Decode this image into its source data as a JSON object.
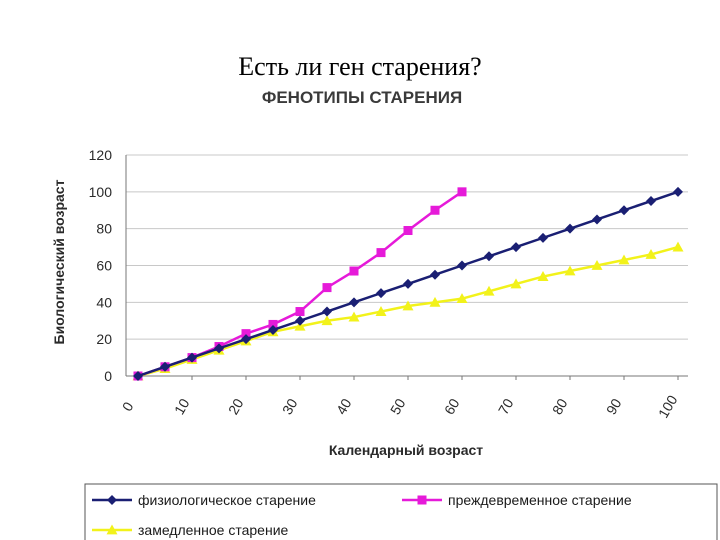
{
  "page_title": "Есть ли ген старения?",
  "colors": {
    "physio": "#1a1f73",
    "premature": "#e61ad9",
    "slow": "#f2f21a"
  },
  "chart_data": {
    "type": "line",
    "title": "ФЕНОТИПЫ СТАРЕНИЯ",
    "xlabel": "Календарный возраст",
    "ylabel": "Биологический возраст",
    "xlim": [
      0,
      100
    ],
    "ylim": [
      0,
      120
    ],
    "x_ticks": [
      "0",
      "10",
      "20",
      "30",
      "40",
      "50",
      "60",
      "70",
      "80",
      "90",
      "100"
    ],
    "y_ticks": [
      "0",
      "20",
      "40",
      "60",
      "80",
      "100",
      "120"
    ],
    "grid": true,
    "legend_position": "bottom",
    "series": [
      {
        "name": "физиологическое старение",
        "color": "#1a1f73",
        "marker": "diamond",
        "x": [
          0,
          5,
          10,
          15,
          20,
          25,
          30,
          35,
          40,
          45,
          50,
          55,
          60,
          65,
          70,
          75,
          80,
          85,
          90,
          95,
          100
        ],
        "y": [
          0,
          5,
          10,
          15,
          20,
          25,
          30,
          35,
          40,
          45,
          50,
          55,
          60,
          65,
          70,
          75,
          80,
          85,
          90,
          95,
          100
        ]
      },
      {
        "name": "преждевременное старение",
        "color": "#e61ad9",
        "marker": "square",
        "x": [
          0,
          5,
          10,
          15,
          20,
          25,
          30,
          35,
          40,
          45,
          50,
          55,
          60
        ],
        "y": [
          0,
          5,
          10,
          16,
          23,
          28,
          35,
          48,
          57,
          67,
          79,
          90,
          100
        ]
      },
      {
        "name": "замедленное старение",
        "color": "#f2f21a",
        "marker": "triangle",
        "x": [
          0,
          5,
          10,
          15,
          20,
          25,
          30,
          35,
          40,
          45,
          50,
          55,
          60,
          65,
          70,
          75,
          80,
          85,
          90,
          95,
          100
        ],
        "y": [
          0,
          4,
          9,
          14,
          19,
          24,
          27,
          30,
          32,
          35,
          38,
          40,
          42,
          46,
          50,
          54,
          57,
          60,
          63,
          66,
          70
        ]
      }
    ]
  }
}
